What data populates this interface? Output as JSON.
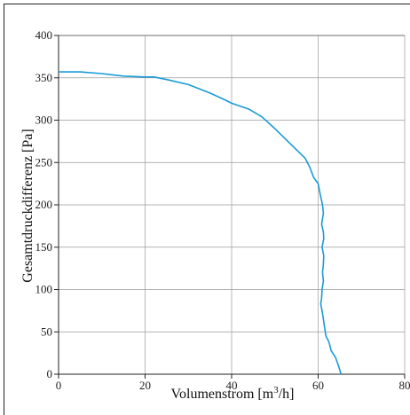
{
  "chart_data": {
    "type": "line",
    "xlabel": "Volumenstrom [m³/h]",
    "xlabel_parts": {
      "main": "Volumenstrom [m",
      "sup": "3",
      "tail": "/h]"
    },
    "ylabel": "Gesamtdruckdifferenz [Pa]",
    "xlim": [
      0,
      80
    ],
    "ylim": [
      0,
      400
    ],
    "x_ticks": [
      "0",
      "20",
      "40",
      "60",
      "80"
    ],
    "y_ticks": [
      "0",
      "50",
      "100",
      "150",
      "200",
      "250",
      "300",
      "350",
      "400"
    ],
    "grid": true,
    "series": [
      {
        "color": "#1a9bd7",
        "points": [
          [
            0,
            357
          ],
          [
            5,
            357
          ],
          [
            10,
            355
          ],
          [
            15,
            352
          ],
          [
            20,
            351
          ],
          [
            22,
            351
          ],
          [
            25,
            348
          ],
          [
            30,
            342
          ],
          [
            35,
            332
          ],
          [
            38,
            325
          ],
          [
            40,
            320
          ],
          [
            44,
            313
          ],
          [
            47,
            304
          ],
          [
            50,
            290
          ],
          [
            53,
            275
          ],
          [
            56,
            260
          ],
          [
            57,
            255
          ],
          [
            58,
            245
          ],
          [
            59,
            232
          ],
          [
            60,
            225
          ],
          [
            60.5,
            212
          ],
          [
            61,
            200
          ],
          [
            61.2,
            190
          ],
          [
            60.8,
            177
          ],
          [
            61.2,
            168
          ],
          [
            61.3,
            160
          ],
          [
            60.9,
            150
          ],
          [
            61.3,
            140
          ],
          [
            61.2,
            130
          ],
          [
            61,
            120
          ],
          [
            61.2,
            110
          ],
          [
            60.9,
            100
          ],
          [
            60.8,
            90
          ],
          [
            60.6,
            83
          ],
          [
            60.9,
            75
          ],
          [
            61.2,
            65
          ],
          [
            61.5,
            55
          ],
          [
            61.8,
            45
          ],
          [
            62.5,
            38
          ],
          [
            63,
            28
          ],
          [
            64,
            20
          ],
          [
            64.7,
            10
          ],
          [
            65.3,
            0
          ]
        ]
      }
    ]
  }
}
